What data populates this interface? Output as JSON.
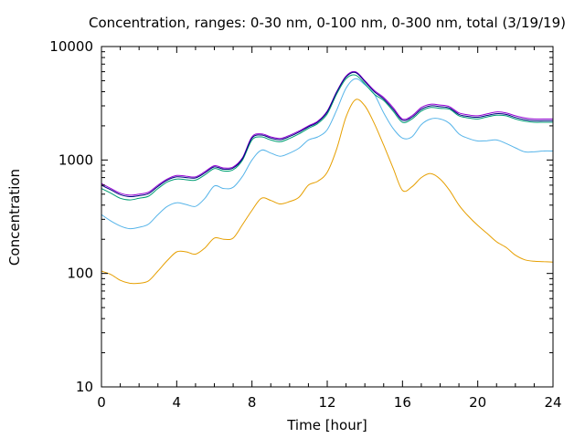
{
  "chart_data": {
    "type": "line",
    "title": "Concentration, ranges: 0-30 nm, 0-100 nm, 0-300 nm, total (3/19/19)",
    "xlabel": "Time [hour]",
    "ylabel": "Concentration",
    "xlim": [
      0,
      24
    ],
    "ylim": [
      10,
      10000
    ],
    "y_scale": "log",
    "x_ticks": [
      0,
      4,
      8,
      12,
      16,
      20,
      24
    ],
    "x_tick_labels": [
      "0",
      "4",
      "8",
      "12",
      "16",
      "20",
      "24"
    ],
    "y_ticks": [
      10,
      100,
      1000,
      10000
    ],
    "y_tick_labels": [
      "10",
      "100",
      "1000",
      "10000"
    ],
    "grid": false,
    "legend": "none",
    "series": [
      {
        "color": "#e69f00",
        "x": [
          0,
          0.5,
          1,
          1.5,
          2,
          2.5,
          3,
          3.5,
          4,
          4.5,
          5,
          5.5,
          6,
          6.5,
          7,
          7.5,
          8,
          8.5,
          9,
          9.5,
          10,
          10.5,
          11,
          11.5,
          12,
          12.5,
          13,
          13.5,
          14,
          14.5,
          15,
          15.5,
          16,
          16.5,
          17,
          17.5,
          18,
          18.5,
          19,
          19.5,
          20,
          20.5,
          21,
          21.5,
          22,
          22.5,
          23,
          23.5,
          24
        ],
        "y": [
          105,
          98,
          87,
          82,
          82,
          86,
          105,
          130,
          155,
          155,
          148,
          168,
          205,
          200,
          205,
          270,
          360,
          460,
          440,
          410,
          430,
          470,
          600,
          650,
          780,
          1250,
          2400,
          3400,
          3000,
          2100,
          1350,
          850,
          540,
          580,
          700,
          760,
          680,
          540,
          400,
          320,
          265,
          225,
          190,
          170,
          145,
          132,
          128,
          127,
          126
        ]
      },
      {
        "color": "#56b4e9",
        "x": [
          0,
          0.5,
          1,
          1.5,
          2,
          2.5,
          3,
          3.5,
          4,
          4.5,
          5,
          5.5,
          6,
          6.5,
          7,
          7.5,
          8,
          8.5,
          9,
          9.5,
          10,
          10.5,
          11,
          11.5,
          12,
          12.5,
          13,
          13.5,
          14,
          14.5,
          15,
          15.5,
          16,
          16.5,
          17,
          17.5,
          18,
          18.5,
          19,
          19.5,
          20,
          20.5,
          21,
          21.5,
          22,
          22.5,
          23,
          23.5,
          24
        ],
        "y": [
          330,
          290,
          262,
          248,
          255,
          272,
          330,
          390,
          420,
          405,
          390,
          460,
          590,
          560,
          575,
          720,
          1000,
          1220,
          1150,
          1080,
          1150,
          1270,
          1500,
          1600,
          1850,
          2750,
          4300,
          5200,
          4600,
          3800,
          2600,
          1900,
          1560,
          1600,
          2050,
          2300,
          2300,
          2100,
          1700,
          1550,
          1470,
          1480,
          1500,
          1400,
          1280,
          1180,
          1180,
          1200,
          1200
        ]
      },
      {
        "color": "#009e73",
        "x": [
          0,
          0.5,
          1,
          1.5,
          2,
          2.5,
          3,
          3.5,
          4,
          4.5,
          5,
          5.5,
          6,
          6.5,
          7,
          7.5,
          8,
          8.5,
          9,
          9.5,
          10,
          10.5,
          11,
          11.5,
          12,
          12.5,
          13,
          13.5,
          14,
          14.5,
          15,
          15.5,
          16,
          16.5,
          17,
          17.5,
          18,
          18.5,
          19,
          19.5,
          20,
          20.5,
          21,
          21.5,
          22,
          22.5,
          23,
          23.5,
          24
        ],
        "y": [
          560,
          510,
          460,
          445,
          460,
          480,
          560,
          640,
          680,
          670,
          665,
          740,
          840,
          800,
          820,
          1000,
          1500,
          1600,
          1500,
          1450,
          1550,
          1700,
          1900,
          2100,
          2550,
          3800,
          5200,
          5600,
          4700,
          3800,
          3350,
          2700,
          2150,
          2300,
          2700,
          2900,
          2850,
          2800,
          2450,
          2350,
          2300,
          2400,
          2480,
          2450,
          2300,
          2200,
          2150,
          2150,
          2150
        ]
      },
      {
        "color": "#9400d3",
        "x": [
          0,
          0.5,
          1,
          1.5,
          2,
          2.5,
          3,
          3.5,
          4,
          4.5,
          5,
          5.5,
          6,
          6.5,
          7,
          7.5,
          8,
          8.5,
          9,
          9.5,
          10,
          10.5,
          11,
          11.5,
          12,
          12.5,
          13,
          13.5,
          14,
          14.5,
          15,
          15.5,
          16,
          16.5,
          17,
          17.5,
          18,
          18.5,
          19,
          19.5,
          20,
          20.5,
          21,
          21.5,
          22,
          22.5,
          23,
          23.5,
          24
        ],
        "y": [
          620,
          560,
          510,
          490,
          500,
          520,
          600,
          680,
          730,
          720,
          710,
          790,
          890,
          850,
          870,
          1050,
          1600,
          1700,
          1600,
          1550,
          1650,
          1800,
          2000,
          2200,
          2700,
          4000,
          5500,
          6000,
          5000,
          4100,
          3550,
          2900,
          2300,
          2450,
          2900,
          3100,
          3050,
          2950,
          2600,
          2500,
          2450,
          2550,
          2650,
          2600,
          2450,
          2350,
          2300,
          2300,
          2300
        ]
      },
      {
        "color": "#000080",
        "x": [
          0,
          0.5,
          1,
          1.5,
          2,
          2.5,
          3,
          3.5,
          4,
          4.5,
          5,
          5.5,
          6,
          6.5,
          7,
          7.5,
          8,
          8.5,
          9,
          9.5,
          10,
          10.5,
          11,
          11.5,
          12,
          12.5,
          13,
          13.5,
          14,
          14.5,
          15,
          15.5,
          16,
          16.5,
          17,
          17.5,
          18,
          18.5,
          19,
          19.5,
          20,
          20.5,
          21,
          21.5,
          22,
          22.5,
          23,
          23.5,
          24
        ],
        "y": [
          600,
          545,
          495,
          475,
          485,
          505,
          585,
          665,
          710,
          700,
          695,
          770,
          870,
          830,
          850,
          1030,
          1560,
          1660,
          1560,
          1510,
          1610,
          1760,
          1960,
          2160,
          2650,
          3950,
          5400,
          5900,
          4900,
          4000,
          3450,
          2800,
          2240,
          2380,
          2800,
          3000,
          2950,
          2870,
          2520,
          2420,
          2380,
          2470,
          2560,
          2520,
          2370,
          2270,
          2220,
          2220,
          2220
        ]
      }
    ]
  }
}
